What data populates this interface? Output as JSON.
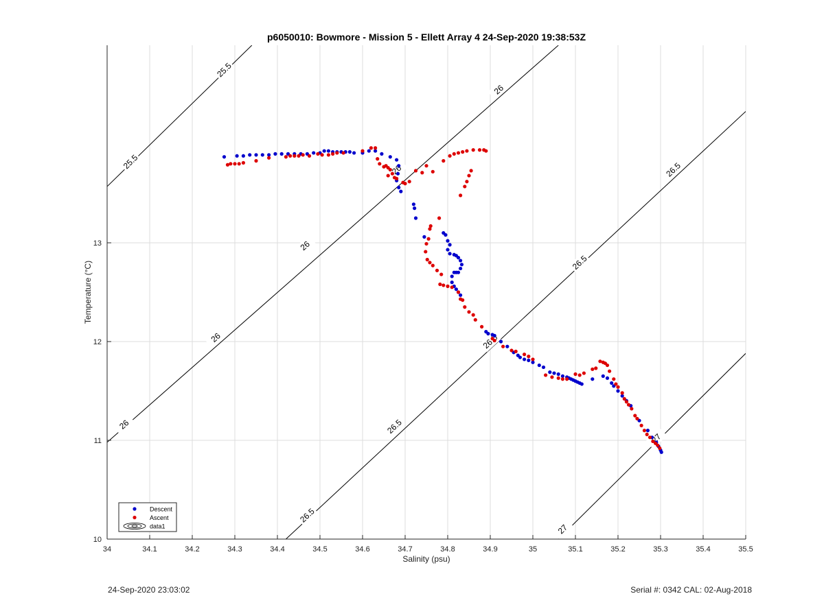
{
  "chart_data": {
    "type": "scatter",
    "title": "p6050010: Bowmore - Mission 5 - Ellett Array 4 24-Sep-2020 19:38:53Z",
    "xlabel": "Salinity (psu)",
    "ylabel": "Temperature (°C)",
    "xlim": [
      34,
      35.5
    ],
    "ylim": [
      10,
      15
    ],
    "x_ticks": [
      "34",
      "34.1",
      "34.2",
      "34.3",
      "34.4",
      "34.5",
      "34.6",
      "34.7",
      "34.8",
      "34.9",
      "35",
      "35.1",
      "35.2",
      "35.3",
      "35.4",
      "35.5"
    ],
    "y_ticks": [
      "10",
      "11",
      "12",
      "13"
    ],
    "grid": true,
    "legend_position": "bottom-left",
    "colors": {
      "descent": "#0000cc",
      "ascent": "#dd0000",
      "contour": "#000000",
      "grid": "#dcdcdc"
    },
    "contours": [
      {
        "label": "25.5",
        "from": [
          34,
          13.57
        ],
        "to": [
          34.34,
          15
        ],
        "label_points": [
          [
            34.055,
            13.82
          ],
          [
            34.275,
            14.75
          ]
        ]
      },
      {
        "label": "26",
        "from": [
          34,
          10.98
        ],
        "to": [
          35.06,
          15
        ],
        "label_points": [
          [
            34.04,
            11.16
          ],
          [
            34.255,
            12.04
          ],
          [
            34.465,
            12.97
          ],
          [
            34.68,
            13.74
          ],
          [
            34.92,
            14.55
          ]
        ]
      },
      {
        "label": "26.5",
        "from": [
          34.42,
          10
        ],
        "to": [
          35.5,
          14.33
        ],
        "label_points": [
          [
            34.47,
            10.24
          ],
          [
            34.675,
            11.14
          ],
          [
            34.9,
            12.0
          ],
          [
            35.11,
            12.8
          ],
          [
            35.33,
            13.74
          ]
        ]
      },
      {
        "label": "27",
        "from": [
          35.06,
          10
        ],
        "to": [
          35.5,
          11.88
        ],
        "label_points": [
          [
            35.07,
            10.1
          ],
          [
            35.29,
            11.02
          ]
        ]
      }
    ],
    "series": [
      {
        "name": "Descent",
        "marker": "dot",
        "points": [
          [
            34.275,
            13.87
          ],
          [
            34.305,
            13.88
          ],
          [
            34.32,
            13.88
          ],
          [
            34.335,
            13.89
          ],
          [
            34.35,
            13.89
          ],
          [
            34.365,
            13.89
          ],
          [
            34.38,
            13.89
          ],
          [
            34.395,
            13.9
          ],
          [
            34.41,
            13.9
          ],
          [
            34.425,
            13.9
          ],
          [
            34.44,
            13.9
          ],
          [
            34.455,
            13.9
          ],
          [
            34.47,
            13.9
          ],
          [
            34.485,
            13.91
          ],
          [
            34.5,
            13.91
          ],
          [
            34.51,
            13.93
          ],
          [
            34.52,
            13.93
          ],
          [
            34.53,
            13.92
          ],
          [
            34.54,
            13.92
          ],
          [
            34.55,
            13.92
          ],
          [
            34.56,
            13.92
          ],
          [
            34.57,
            13.92
          ],
          [
            34.58,
            13.91
          ],
          [
            34.6,
            13.91
          ],
          [
            34.615,
            13.93
          ],
          [
            34.63,
            13.93
          ],
          [
            34.645,
            13.9
          ],
          [
            34.665,
            13.87
          ],
          [
            34.68,
            13.84
          ],
          [
            34.685,
            13.78
          ],
          [
            34.683,
            13.7
          ],
          [
            34.68,
            13.63
          ],
          [
            34.685,
            13.56
          ],
          [
            34.69,
            13.52
          ],
          [
            34.72,
            13.39
          ],
          [
            34.722,
            13.35
          ],
          [
            34.725,
            13.25
          ],
          [
            34.745,
            13.06
          ],
          [
            34.79,
            13.1
          ],
          [
            34.795,
            13.08
          ],
          [
            34.8,
            13.02
          ],
          [
            34.805,
            12.98
          ],
          [
            34.8,
            12.93
          ],
          [
            34.805,
            12.89
          ],
          [
            34.815,
            12.88
          ],
          [
            34.82,
            12.87
          ],
          [
            34.825,
            12.85
          ],
          [
            34.83,
            12.82
          ],
          [
            34.833,
            12.78
          ],
          [
            34.83,
            12.74
          ],
          [
            34.825,
            12.7
          ],
          [
            34.82,
            12.7
          ],
          [
            34.815,
            12.7
          ],
          [
            34.81,
            12.66
          ],
          [
            34.81,
            12.6
          ],
          [
            34.815,
            12.56
          ],
          [
            34.82,
            12.53
          ],
          [
            34.825,
            12.5
          ],
          [
            34.83,
            12.47
          ],
          [
            34.89,
            12.1
          ],
          [
            34.895,
            12.08
          ],
          [
            34.905,
            12.07
          ],
          [
            34.91,
            12.06
          ],
          [
            34.925,
            12.0
          ],
          [
            34.94,
            11.95
          ],
          [
            34.955,
            11.89
          ],
          [
            34.965,
            11.86
          ],
          [
            34.97,
            11.84
          ],
          [
            34.98,
            11.82
          ],
          [
            34.99,
            11.81
          ],
          [
            35.0,
            11.79
          ],
          [
            35.015,
            11.76
          ],
          [
            35.025,
            11.74
          ],
          [
            35.04,
            11.69
          ],
          [
            35.05,
            11.68
          ],
          [
            35.06,
            11.67
          ],
          [
            35.07,
            11.65
          ],
          [
            35.08,
            11.64
          ],
          [
            35.085,
            11.63
          ],
          [
            35.09,
            11.62
          ],
          [
            35.095,
            11.61
          ],
          [
            35.1,
            11.6
          ],
          [
            35.105,
            11.59
          ],
          [
            35.11,
            11.58
          ],
          [
            35.115,
            11.57
          ],
          [
            35.14,
            11.62
          ],
          [
            35.165,
            11.65
          ],
          [
            35.175,
            11.63
          ],
          [
            35.185,
            11.58
          ],
          [
            35.19,
            11.55
          ],
          [
            35.2,
            11.5
          ],
          [
            35.21,
            11.45
          ],
          [
            35.22,
            11.4
          ],
          [
            35.23,
            11.35
          ],
          [
            35.25,
            11.2
          ],
          [
            35.27,
            11.1
          ],
          [
            35.28,
            11.03
          ],
          [
            35.29,
            10.98
          ],
          [
            35.295,
            10.94
          ],
          [
            35.3,
            10.9
          ],
          [
            35.302,
            10.88
          ]
        ]
      },
      {
        "name": "Ascent",
        "marker": "dot",
        "points": [
          [
            34.283,
            13.79
          ],
          [
            34.29,
            13.8
          ],
          [
            34.3,
            13.8
          ],
          [
            34.31,
            13.8
          ],
          [
            34.32,
            13.81
          ],
          [
            34.35,
            13.83
          ],
          [
            34.38,
            13.86
          ],
          [
            34.42,
            13.87
          ],
          [
            34.43,
            13.88
          ],
          [
            34.44,
            13.88
          ],
          [
            34.45,
            13.88
          ],
          [
            34.46,
            13.89
          ],
          [
            34.475,
            13.88
          ],
          [
            34.495,
            13.9
          ],
          [
            34.505,
            13.89
          ],
          [
            34.52,
            13.89
          ],
          [
            34.53,
            13.9
          ],
          [
            34.54,
            13.91
          ],
          [
            34.555,
            13.91
          ],
          [
            34.6,
            13.93
          ],
          [
            34.62,
            13.96
          ],
          [
            34.63,
            13.96
          ],
          [
            34.635,
            13.85
          ],
          [
            34.64,
            13.8
          ],
          [
            34.65,
            13.77
          ],
          [
            34.655,
            13.78
          ],
          [
            34.66,
            13.76
          ],
          [
            34.665,
            13.74
          ],
          [
            34.67,
            13.7
          ],
          [
            34.66,
            13.68
          ],
          [
            34.675,
            13.66
          ],
          [
            34.68,
            13.65
          ],
          [
            34.695,
            13.61
          ],
          [
            34.71,
            13.62
          ],
          [
            34.7,
            13.6
          ],
          [
            34.725,
            13.73
          ],
          [
            34.74,
            13.71
          ],
          [
            34.75,
            13.78
          ],
          [
            34.765,
            13.72
          ],
          [
            34.79,
            13.83
          ],
          [
            34.805,
            13.88
          ],
          [
            34.815,
            13.9
          ],
          [
            34.825,
            13.91
          ],
          [
            34.835,
            13.92
          ],
          [
            34.845,
            13.93
          ],
          [
            34.86,
            13.94
          ],
          [
            34.875,
            13.94
          ],
          [
            34.885,
            13.94
          ],
          [
            34.89,
            13.93
          ],
          [
            34.855,
            13.73
          ],
          [
            34.85,
            13.68
          ],
          [
            34.845,
            13.62
          ],
          [
            34.84,
            13.57
          ],
          [
            34.83,
            13.48
          ],
          [
            34.78,
            13.25
          ],
          [
            34.76,
            13.17
          ],
          [
            34.758,
            13.14
          ],
          [
            34.755,
            13.04
          ],
          [
            34.75,
            12.99
          ],
          [
            34.748,
            12.91
          ],
          [
            34.752,
            12.83
          ],
          [
            34.758,
            12.8
          ],
          [
            34.765,
            12.77
          ],
          [
            34.775,
            12.72
          ],
          [
            34.785,
            12.68
          ],
          [
            34.782,
            12.58
          ],
          [
            34.79,
            12.57
          ],
          [
            34.8,
            12.56
          ],
          [
            34.81,
            12.55
          ],
          [
            34.825,
            12.5
          ],
          [
            34.83,
            12.43
          ],
          [
            34.835,
            12.42
          ],
          [
            34.84,
            12.35
          ],
          [
            34.85,
            12.3
          ],
          [
            34.86,
            12.27
          ],
          [
            34.865,
            12.22
          ],
          [
            34.88,
            12.15
          ],
          [
            34.905,
            12.03
          ],
          [
            34.91,
            12.01
          ],
          [
            34.93,
            11.95
          ],
          [
            34.95,
            11.91
          ],
          [
            34.96,
            11.9
          ],
          [
            34.98,
            11.87
          ],
          [
            34.99,
            11.85
          ],
          [
            35.0,
            11.82
          ],
          [
            35.03,
            11.66
          ],
          [
            35.045,
            11.64
          ],
          [
            35.06,
            11.63
          ],
          [
            35.07,
            11.62
          ],
          [
            35.08,
            11.62
          ],
          [
            35.1,
            11.67
          ],
          [
            35.11,
            11.66
          ],
          [
            35.12,
            11.68
          ],
          [
            35.14,
            11.72
          ],
          [
            35.148,
            11.73
          ],
          [
            35.158,
            11.8
          ],
          [
            35.165,
            11.79
          ],
          [
            35.17,
            11.78
          ],
          [
            35.175,
            11.76
          ],
          [
            35.18,
            11.7
          ],
          [
            35.19,
            11.62
          ],
          [
            35.195,
            11.57
          ],
          [
            35.2,
            11.54
          ],
          [
            35.21,
            11.48
          ],
          [
            35.215,
            11.42
          ],
          [
            35.22,
            11.39
          ],
          [
            35.225,
            11.36
          ],
          [
            35.232,
            11.32
          ],
          [
            35.24,
            11.25
          ],
          [
            35.245,
            11.22
          ],
          [
            35.255,
            11.15
          ],
          [
            35.262,
            11.1
          ],
          [
            35.268,
            11.06
          ],
          [
            35.275,
            11.03
          ],
          [
            35.282,
            10.99
          ],
          [
            35.288,
            10.97
          ],
          [
            35.293,
            10.95
          ],
          [
            35.298,
            10.92
          ]
        ]
      }
    ],
    "legend": [
      "Descent",
      "Ascent",
      "data1"
    ]
  },
  "footer": {
    "left": "24-Sep-2020 23:03:02",
    "right": "Serial #: 0342  CAL: 02-Aug-2018"
  }
}
